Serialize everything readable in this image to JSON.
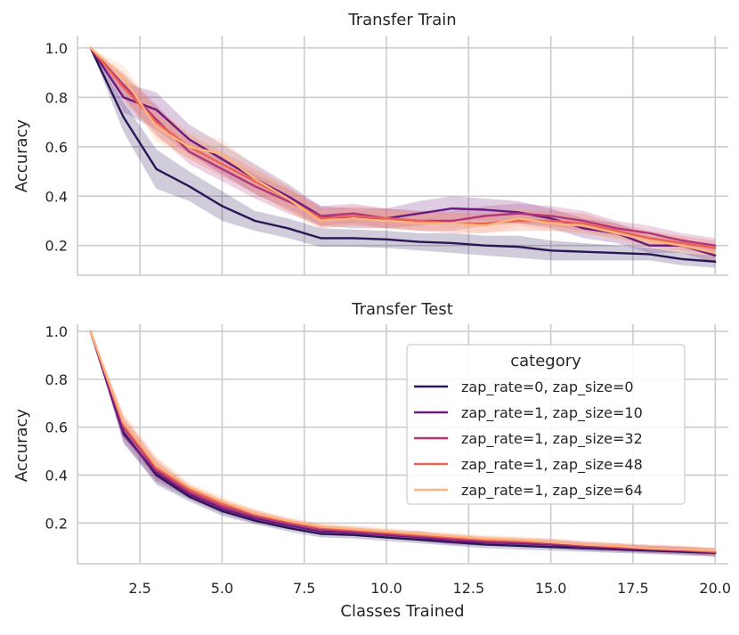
{
  "chart_data": [
    {
      "type": "line",
      "title": "Transfer Train",
      "xlabel": "",
      "ylabel": "Accuracy",
      "xlim": [
        0.6,
        20.4
      ],
      "ylim": [
        0.08,
        1.05
      ],
      "xticks": [
        2.5,
        5.0,
        7.5,
        10.0,
        12.5,
        15.0,
        17.5,
        20.0
      ],
      "xtick_labels": [
        "2.5",
        "5.0",
        "7.5",
        "10.0",
        "12.5",
        "15.0",
        "17.5",
        "20.0"
      ],
      "yticks": [
        0.2,
        0.4,
        0.6,
        0.8,
        1.0
      ],
      "ytick_labels": [
        "0.2",
        "0.4",
        "0.6",
        "0.8",
        "1.0"
      ],
      "grid": true,
      "show_xtick_labels": false,
      "x": [
        1,
        2,
        3,
        4,
        5,
        6,
        7,
        8,
        9,
        10,
        11,
        12,
        13,
        14,
        15,
        16,
        17,
        18,
        19,
        20
      ],
      "series": [
        {
          "name": "zap_rate=0, zap_size=0",
          "color": "#2a1655",
          "values": [
            1.0,
            0.72,
            0.51,
            0.44,
            0.36,
            0.3,
            0.27,
            0.23,
            0.23,
            0.225,
            0.215,
            0.21,
            0.2,
            0.195,
            0.18,
            0.175,
            0.17,
            0.165,
            0.145,
            0.135
          ],
          "lower": [
            1.0,
            0.66,
            0.43,
            0.38,
            0.3,
            0.26,
            0.23,
            0.195,
            0.195,
            0.19,
            0.18,
            0.17,
            0.16,
            0.15,
            0.14,
            0.14,
            0.14,
            0.14,
            0.12,
            0.11
          ],
          "upper": [
            1.0,
            0.78,
            0.59,
            0.5,
            0.42,
            0.34,
            0.31,
            0.27,
            0.265,
            0.26,
            0.25,
            0.25,
            0.24,
            0.24,
            0.22,
            0.21,
            0.2,
            0.19,
            0.17,
            0.16
          ]
        },
        {
          "name": "zap_rate=1, zap_size=10",
          "color": "#6a1b7d",
          "values": [
            1.0,
            0.8,
            0.75,
            0.63,
            0.55,
            0.47,
            0.4,
            0.32,
            0.31,
            0.31,
            0.33,
            0.35,
            0.345,
            0.335,
            0.31,
            0.27,
            0.25,
            0.2,
            0.2,
            0.16
          ],
          "lower": [
            1.0,
            0.74,
            0.67,
            0.57,
            0.49,
            0.41,
            0.35,
            0.28,
            0.27,
            0.27,
            0.28,
            0.3,
            0.3,
            0.29,
            0.27,
            0.23,
            0.21,
            0.17,
            0.17,
            0.13
          ],
          "upper": [
            1.0,
            0.86,
            0.82,
            0.69,
            0.61,
            0.53,
            0.45,
            0.36,
            0.35,
            0.35,
            0.38,
            0.4,
            0.39,
            0.38,
            0.35,
            0.31,
            0.29,
            0.24,
            0.23,
            0.19
          ]
        },
        {
          "name": "zap_rate=1, zap_size=32",
          "color": "#b3357a",
          "values": [
            1.0,
            0.85,
            0.71,
            0.58,
            0.51,
            0.44,
            0.38,
            0.32,
            0.33,
            0.31,
            0.3,
            0.3,
            0.32,
            0.33,
            0.32,
            0.3,
            0.27,
            0.25,
            0.22,
            0.2
          ],
          "lower": [
            1.0,
            0.8,
            0.65,
            0.53,
            0.46,
            0.39,
            0.33,
            0.28,
            0.29,
            0.27,
            0.26,
            0.26,
            0.28,
            0.29,
            0.28,
            0.26,
            0.24,
            0.22,
            0.19,
            0.17
          ],
          "upper": [
            1.0,
            0.9,
            0.77,
            0.63,
            0.56,
            0.49,
            0.43,
            0.36,
            0.37,
            0.35,
            0.34,
            0.34,
            0.36,
            0.37,
            0.36,
            0.34,
            0.3,
            0.28,
            0.25,
            0.23
          ]
        },
        {
          "name": "zap_rate=1, zap_size=48",
          "color": "#ec6255",
          "values": [
            1.0,
            0.84,
            0.7,
            0.6,
            0.53,
            0.46,
            0.39,
            0.31,
            0.32,
            0.31,
            0.3,
            0.29,
            0.29,
            0.3,
            0.3,
            0.29,
            0.26,
            0.23,
            0.21,
            0.19
          ],
          "lower": [
            1.0,
            0.79,
            0.64,
            0.55,
            0.48,
            0.41,
            0.34,
            0.27,
            0.28,
            0.27,
            0.26,
            0.25,
            0.25,
            0.26,
            0.26,
            0.25,
            0.23,
            0.2,
            0.18,
            0.16
          ],
          "upper": [
            1.0,
            0.89,
            0.76,
            0.65,
            0.58,
            0.51,
            0.44,
            0.35,
            0.36,
            0.35,
            0.34,
            0.33,
            0.33,
            0.34,
            0.34,
            0.33,
            0.29,
            0.26,
            0.24,
            0.22
          ]
        },
        {
          "name": "zap_rate=1, zap_size=64",
          "color": "#fdb57d",
          "values": [
            1.0,
            0.88,
            0.68,
            0.6,
            0.57,
            0.47,
            0.39,
            0.3,
            0.31,
            0.3,
            0.29,
            0.29,
            0.28,
            0.31,
            0.29,
            0.28,
            0.25,
            0.22,
            0.2,
            0.17
          ],
          "lower": [
            1.0,
            0.83,
            0.62,
            0.55,
            0.52,
            0.42,
            0.34,
            0.27,
            0.28,
            0.27,
            0.26,
            0.26,
            0.25,
            0.28,
            0.26,
            0.25,
            0.22,
            0.19,
            0.17,
            0.14
          ],
          "upper": [
            1.0,
            0.93,
            0.75,
            0.66,
            0.63,
            0.52,
            0.44,
            0.34,
            0.35,
            0.34,
            0.33,
            0.33,
            0.32,
            0.35,
            0.33,
            0.31,
            0.28,
            0.25,
            0.23,
            0.2
          ]
        }
      ]
    },
    {
      "type": "line",
      "title": "Transfer Test",
      "xlabel": "Classes Trained",
      "ylabel": "Accuracy",
      "xlim": [
        0.6,
        20.4
      ],
      "ylim": [
        0.03,
        1.03
      ],
      "xticks": [
        2.5,
        5.0,
        7.5,
        10.0,
        12.5,
        15.0,
        17.5,
        20.0
      ],
      "xtick_labels": [
        "2.5",
        "5.0",
        "7.5",
        "10.0",
        "12.5",
        "15.0",
        "17.5",
        "20.0"
      ],
      "yticks": [
        0.2,
        0.4,
        0.6,
        0.8,
        1.0
      ],
      "ytick_labels": [
        "0.2",
        "0.4",
        "0.6",
        "0.8",
        "1.0"
      ],
      "grid": true,
      "show_xtick_labels": true,
      "legend": {
        "title": "category",
        "placement": "center-right"
      },
      "x": [
        1,
        2,
        3,
        4,
        5,
        6,
        7,
        8,
        9,
        10,
        11,
        12,
        13,
        14,
        15,
        16,
        17,
        18,
        19,
        20
      ],
      "series": [
        {
          "name": "zap_rate=0, zap_size=0",
          "color": "#2a1655",
          "values": [
            1.0,
            0.58,
            0.4,
            0.31,
            0.25,
            0.21,
            0.18,
            0.155,
            0.15,
            0.14,
            0.13,
            0.12,
            0.11,
            0.105,
            0.1,
            0.095,
            0.09,
            0.085,
            0.08,
            0.075
          ],
          "lower": [
            1.0,
            0.54,
            0.36,
            0.29,
            0.23,
            0.195,
            0.165,
            0.14,
            0.135,
            0.125,
            0.115,
            0.105,
            0.095,
            0.09,
            0.085,
            0.08,
            0.075,
            0.07,
            0.065,
            0.06
          ],
          "upper": [
            1.0,
            0.62,
            0.44,
            0.33,
            0.27,
            0.225,
            0.195,
            0.17,
            0.165,
            0.155,
            0.145,
            0.135,
            0.125,
            0.12,
            0.115,
            0.11,
            0.105,
            0.1,
            0.095,
            0.09
          ]
        },
        {
          "name": "zap_rate=1, zap_size=10",
          "color": "#6a1b7d",
          "values": [
            1.0,
            0.57,
            0.41,
            0.32,
            0.26,
            0.22,
            0.19,
            0.165,
            0.16,
            0.15,
            0.14,
            0.125,
            0.12,
            0.115,
            0.11,
            0.1,
            0.095,
            0.09,
            0.085,
            0.075
          ],
          "lower": [
            1.0,
            0.53,
            0.37,
            0.3,
            0.24,
            0.2,
            0.175,
            0.15,
            0.145,
            0.135,
            0.125,
            0.11,
            0.105,
            0.1,
            0.095,
            0.085,
            0.08,
            0.075,
            0.07,
            0.06
          ],
          "upper": [
            1.0,
            0.61,
            0.45,
            0.34,
            0.28,
            0.24,
            0.205,
            0.18,
            0.175,
            0.165,
            0.165,
            0.145,
            0.135,
            0.13,
            0.125,
            0.115,
            0.11,
            0.105,
            0.1,
            0.09
          ]
        },
        {
          "name": "zap_rate=1, zap_size=32",
          "color": "#b3357a",
          "values": [
            1.0,
            0.6,
            0.42,
            0.33,
            0.27,
            0.23,
            0.2,
            0.175,
            0.165,
            0.155,
            0.145,
            0.135,
            0.125,
            0.12,
            0.115,
            0.105,
            0.1,
            0.09,
            0.085,
            0.08
          ],
          "lower": [
            1.0,
            0.56,
            0.38,
            0.31,
            0.25,
            0.21,
            0.185,
            0.16,
            0.15,
            0.14,
            0.13,
            0.12,
            0.11,
            0.105,
            0.1,
            0.09,
            0.085,
            0.075,
            0.07,
            0.065
          ],
          "upper": [
            1.0,
            0.64,
            0.46,
            0.35,
            0.29,
            0.25,
            0.215,
            0.19,
            0.18,
            0.17,
            0.16,
            0.15,
            0.14,
            0.135,
            0.13,
            0.12,
            0.115,
            0.105,
            0.1,
            0.095
          ]
        },
        {
          "name": "zap_rate=1, zap_size=48",
          "color": "#ec6255",
          "values": [
            1.0,
            0.61,
            0.43,
            0.34,
            0.28,
            0.235,
            0.205,
            0.18,
            0.17,
            0.16,
            0.15,
            0.14,
            0.13,
            0.125,
            0.12,
            0.11,
            0.1,
            0.095,
            0.09,
            0.08
          ],
          "lower": [
            1.0,
            0.57,
            0.39,
            0.32,
            0.26,
            0.215,
            0.19,
            0.165,
            0.155,
            0.145,
            0.135,
            0.125,
            0.115,
            0.11,
            0.105,
            0.095,
            0.085,
            0.08,
            0.075,
            0.065
          ],
          "upper": [
            1.0,
            0.65,
            0.47,
            0.36,
            0.3,
            0.255,
            0.22,
            0.195,
            0.185,
            0.175,
            0.165,
            0.155,
            0.145,
            0.14,
            0.135,
            0.125,
            0.115,
            0.11,
            0.105,
            0.095
          ]
        },
        {
          "name": "zap_rate=1, zap_size=64",
          "color": "#fdb57d",
          "values": [
            1.0,
            0.62,
            0.44,
            0.35,
            0.29,
            0.24,
            0.21,
            0.185,
            0.175,
            0.165,
            0.155,
            0.145,
            0.135,
            0.13,
            0.12,
            0.11,
            0.105,
            0.095,
            0.09,
            0.085
          ],
          "lower": [
            1.0,
            0.58,
            0.4,
            0.33,
            0.27,
            0.22,
            0.195,
            0.17,
            0.16,
            0.15,
            0.14,
            0.13,
            0.12,
            0.115,
            0.105,
            0.095,
            0.09,
            0.08,
            0.075,
            0.07
          ],
          "upper": [
            1.0,
            0.66,
            0.48,
            0.37,
            0.31,
            0.26,
            0.225,
            0.2,
            0.19,
            0.18,
            0.17,
            0.16,
            0.15,
            0.145,
            0.135,
            0.125,
            0.12,
            0.11,
            0.105,
            0.1
          ]
        }
      ]
    }
  ]
}
